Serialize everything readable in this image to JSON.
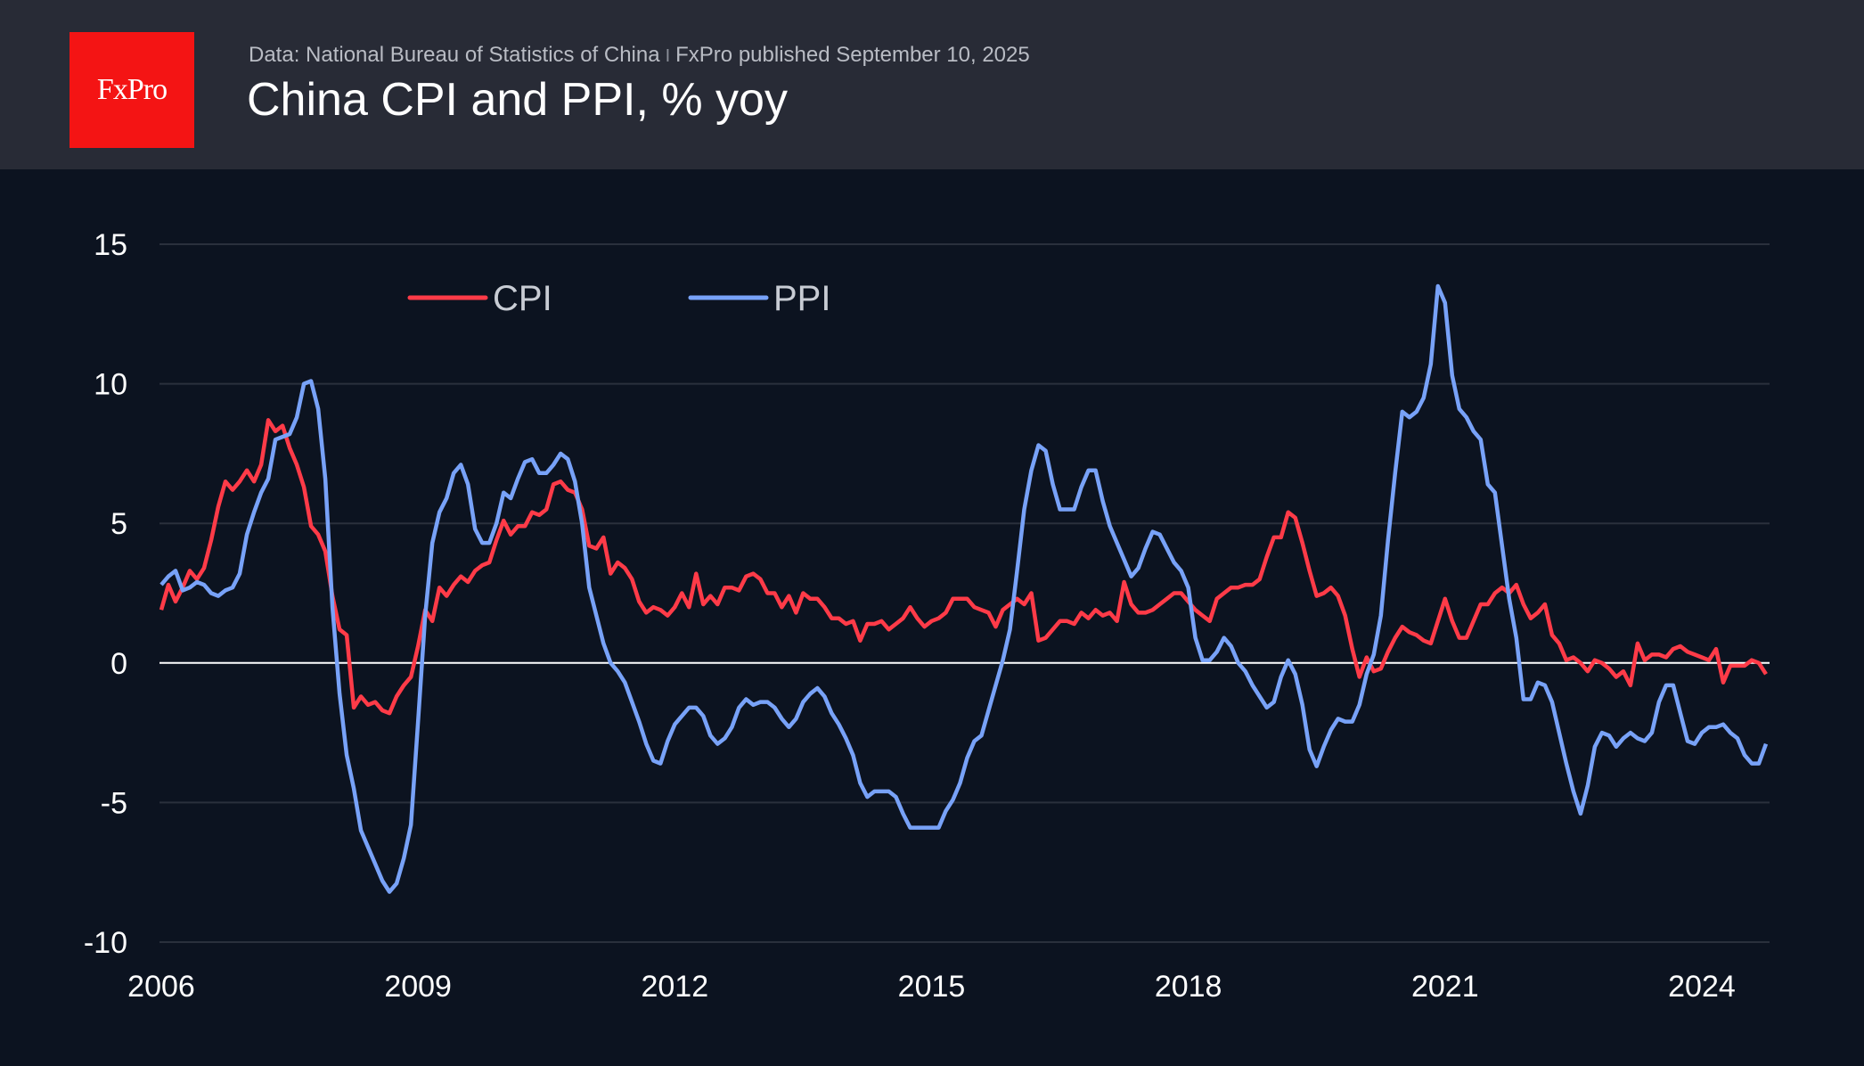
{
  "header": {
    "logo_text": "FxPro",
    "source": "Data: National Bureau of Statistics of China",
    "separator": "I",
    "published": "FxPro published September 10, 2025",
    "title": "China CPI and PPI, % yoy"
  },
  "colors": {
    "background": "#0c1320",
    "header": "#282b36",
    "logo": "#f41414",
    "cpi": "#ff3b48",
    "ppi": "#78a2f8",
    "grid": "#2a303c",
    "zero_line": "#ffffff"
  },
  "chart_data": {
    "type": "line",
    "title": "China CPI and PPI, % yoy",
    "x_start": "2006-11",
    "x_frequency": "monthly",
    "x_end": "2025-08",
    "x_tick_labels": [
      "2006",
      "2009",
      "2012",
      "2015",
      "2018",
      "2021",
      "2024"
    ],
    "y_ticks": [
      15,
      10,
      5,
      0,
      -5,
      -10
    ],
    "ylim": [
      -10,
      15
    ],
    "grid": "horizontal",
    "legend_placement": "top-left",
    "series": [
      {
        "name": "CPI",
        "color": "#ff3b48",
        "values": [
          1.9,
          2.8,
          2.2,
          2.7,
          3.3,
          3.0,
          3.4,
          4.4,
          5.6,
          6.5,
          6.2,
          6.5,
          6.9,
          6.5,
          7.1,
          8.7,
          8.3,
          8.5,
          7.7,
          7.1,
          6.3,
          4.9,
          4.6,
          4.0,
          2.4,
          1.2,
          1.0,
          -1.6,
          -1.2,
          -1.5,
          -1.4,
          -1.7,
          -1.8,
          -1.2,
          -0.8,
          -0.5,
          0.6,
          1.9,
          1.5,
          2.7,
          2.4,
          2.8,
          3.1,
          2.9,
          3.3,
          3.5,
          3.6,
          4.4,
          5.1,
          4.6,
          4.9,
          4.9,
          5.4,
          5.3,
          5.5,
          6.4,
          6.5,
          6.2,
          6.1,
          5.5,
          4.2,
          4.1,
          4.5,
          3.2,
          3.6,
          3.4,
          3.0,
          2.2,
          1.8,
          2.0,
          1.9,
          1.7,
          2.0,
          2.5,
          2.0,
          3.2,
          2.1,
          2.4,
          2.1,
          2.7,
          2.7,
          2.6,
          3.1,
          3.2,
          3.0,
          2.5,
          2.5,
          2.0,
          2.4,
          1.8,
          2.5,
          2.3,
          2.3,
          2.0,
          1.6,
          1.6,
          1.4,
          1.5,
          0.8,
          1.4,
          1.4,
          1.5,
          1.2,
          1.4,
          1.6,
          2.0,
          1.6,
          1.3,
          1.5,
          1.6,
          1.8,
          2.3,
          2.3,
          2.3,
          2.0,
          1.9,
          1.8,
          1.3,
          1.9,
          2.1,
          2.3,
          2.1,
          2.5,
          0.8,
          0.9,
          1.2,
          1.5,
          1.5,
          1.4,
          1.8,
          1.6,
          1.9,
          1.7,
          1.8,
          1.5,
          2.9,
          2.1,
          1.8,
          1.8,
          1.9,
          2.1,
          2.3,
          2.5,
          2.5,
          2.2,
          1.9,
          1.7,
          1.5,
          2.3,
          2.5,
          2.7,
          2.7,
          2.8,
          2.8,
          3.0,
          3.8,
          4.5,
          4.5,
          5.4,
          5.2,
          4.3,
          3.3,
          2.4,
          2.5,
          2.7,
          2.4,
          1.7,
          0.5,
          -0.5,
          0.2,
          -0.3,
          -0.2,
          0.4,
          0.9,
          1.3,
          1.1,
          1.0,
          0.8,
          0.7,
          1.5,
          2.3,
          1.5,
          0.9,
          0.9,
          1.5,
          2.1,
          2.1,
          2.5,
          2.7,
          2.5,
          2.8,
          2.1,
          1.6,
          1.8,
          2.1,
          1.0,
          0.7,
          0.1,
          0.2,
          0.0,
          -0.3,
          0.1,
          0.0,
          -0.2,
          -0.5,
          -0.3,
          -0.8,
          0.7,
          0.1,
          0.3,
          0.3,
          0.2,
          0.5,
          0.6,
          0.4,
          0.3,
          0.2,
          0.1,
          0.5,
          -0.7,
          -0.1,
          -0.1,
          -0.1,
          0.1,
          0.0,
          -0.4
        ]
      },
      {
        "name": "PPI",
        "color": "#78a2f8",
        "values": [
          2.8,
          3.1,
          3.3,
          2.6,
          2.7,
          2.9,
          2.8,
          2.5,
          2.4,
          2.6,
          2.7,
          3.2,
          4.6,
          5.4,
          6.1,
          6.6,
          8.0,
          8.1,
          8.2,
          8.8,
          10.0,
          10.1,
          9.1,
          6.6,
          2.0,
          -1.1,
          -3.3,
          -4.5,
          -6.0,
          -6.6,
          -7.2,
          -7.8,
          -8.2,
          -7.9,
          -7.0,
          -5.8,
          -2.1,
          1.7,
          4.3,
          5.4,
          5.9,
          6.8,
          7.1,
          6.4,
          4.8,
          4.3,
          4.3,
          5.0,
          6.1,
          5.9,
          6.6,
          7.2,
          7.3,
          6.8,
          6.8,
          7.1,
          7.5,
          7.3,
          6.5,
          5.0,
          2.7,
          1.7,
          0.7,
          0.0,
          -0.3,
          -0.7,
          -1.4,
          -2.1,
          -2.9,
          -3.5,
          -3.6,
          -2.8,
          -2.2,
          -1.9,
          -1.6,
          -1.6,
          -1.9,
          -2.6,
          -2.9,
          -2.7,
          -2.3,
          -1.6,
          -1.3,
          -1.5,
          -1.4,
          -1.4,
          -1.6,
          -2.0,
          -2.3,
          -2.0,
          -1.4,
          -1.1,
          -0.9,
          -1.2,
          -1.8,
          -2.2,
          -2.7,
          -3.3,
          -4.3,
          -4.8,
          -4.6,
          -4.6,
          -4.6,
          -4.8,
          -5.4,
          -5.9,
          -5.9,
          -5.9,
          -5.9,
          -5.9,
          -5.3,
          -4.9,
          -4.3,
          -3.4,
          -2.8,
          -2.6,
          -1.7,
          -0.8,
          0.1,
          1.2,
          3.3,
          5.5,
          6.9,
          7.8,
          7.6,
          6.4,
          5.5,
          5.5,
          5.5,
          6.3,
          6.9,
          6.9,
          5.8,
          4.9,
          4.3,
          3.7,
          3.1,
          3.4,
          4.1,
          4.7,
          4.6,
          4.1,
          3.6,
          3.3,
          2.7,
          0.9,
          0.1,
          0.1,
          0.4,
          0.9,
          0.6,
          0.0,
          -0.3,
          -0.8,
          -1.2,
          -1.6,
          -1.4,
          -0.5,
          0.1,
          -0.4,
          -1.5,
          -3.1,
          -3.7,
          -3.0,
          -2.4,
          -2.0,
          -2.1,
          -2.1,
          -1.5,
          -0.4,
          0.3,
          1.7,
          4.4,
          6.8,
          9.0,
          8.8,
          9.0,
          9.5,
          10.7,
          13.5,
          12.9,
          10.3,
          9.1,
          8.8,
          8.3,
          8.0,
          6.4,
          6.1,
          4.2,
          2.3,
          0.9,
          -1.3,
          -1.3,
          -0.7,
          -0.8,
          -1.4,
          -2.5,
          -3.6,
          -4.6,
          -5.4,
          -4.4,
          -3.0,
          -2.5,
          -2.6,
          -3.0,
          -2.7,
          -2.5,
          -2.7,
          -2.8,
          -2.5,
          -1.4,
          -0.8,
          -0.8,
          -1.8,
          -2.8,
          -2.9,
          -2.5,
          -2.3,
          -2.3,
          -2.2,
          -2.5,
          -2.7,
          -3.3,
          -3.6,
          -3.6,
          -2.9
        ]
      }
    ]
  }
}
